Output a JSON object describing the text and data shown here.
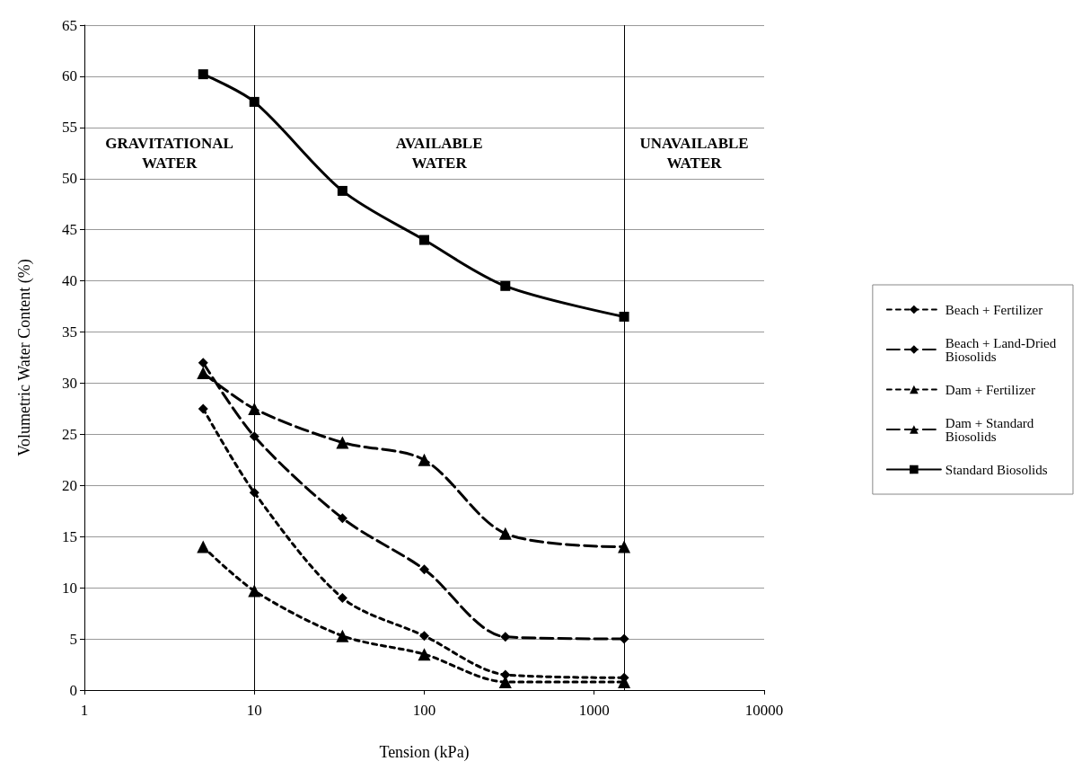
{
  "chart_data": {
    "type": "line",
    "xlabel": "Tension (kPa)",
    "ylabel": "Volumetric Water Content (%)",
    "x": [
      5,
      10,
      33,
      100,
      300,
      1500
    ],
    "series": [
      {
        "name": "Beach + Fertilizer",
        "color": "#000000",
        "marker": "diamond",
        "line_style": "dotted",
        "values": [
          27.5,
          19.3,
          9,
          5.3,
          1.5,
          1.2
        ]
      },
      {
        "name": "Beach + Land-Dried Biosolids",
        "color": "#000000",
        "marker": "diamond",
        "line_style": "dashed",
        "values": [
          32,
          24.8,
          16.8,
          11.8,
          5.2,
          5
        ]
      },
      {
        "name": "Dam + Fertilizer",
        "color": "#000000",
        "marker": "triangle",
        "line_style": "dotted",
        "values": [
          14,
          9.7,
          5.3,
          3.5,
          0.8,
          0.8
        ]
      },
      {
        "name": "Dam + Standard Biosolids",
        "color": "#000000",
        "marker": "triangle",
        "line_style": "dashed",
        "values": [
          31,
          27.5,
          24.2,
          22.5,
          15.3,
          14
        ]
      },
      {
        "name": "Standard Biosolids",
        "color": "#000000",
        "marker": "square",
        "line_style": "solid",
        "values": [
          60.2,
          57.5,
          48.8,
          44,
          39.5,
          36.5
        ]
      }
    ],
    "log": "x",
    "xlim": [
      1,
      10000
    ],
    "xticks": [
      1,
      10,
      100,
      1000,
      10000
    ],
    "ylim": [
      0,
      65
    ],
    "yticks": [
      0,
      5,
      10,
      15,
      20,
      25,
      30,
      35,
      40,
      45,
      50,
      55,
      60,
      65
    ],
    "grid": "y",
    "legend": "right",
    "ref_lines": [
      {
        "axis": "x",
        "value": 10,
        "color": "#000000"
      },
      {
        "axis": "x",
        "value": 1500,
        "color": "#000000"
      }
    ],
    "annotations": [
      "GRAVITATIONAL WATER",
      "AVAILABLE WATER",
      "UNAVAILABLE WATER"
    ]
  }
}
